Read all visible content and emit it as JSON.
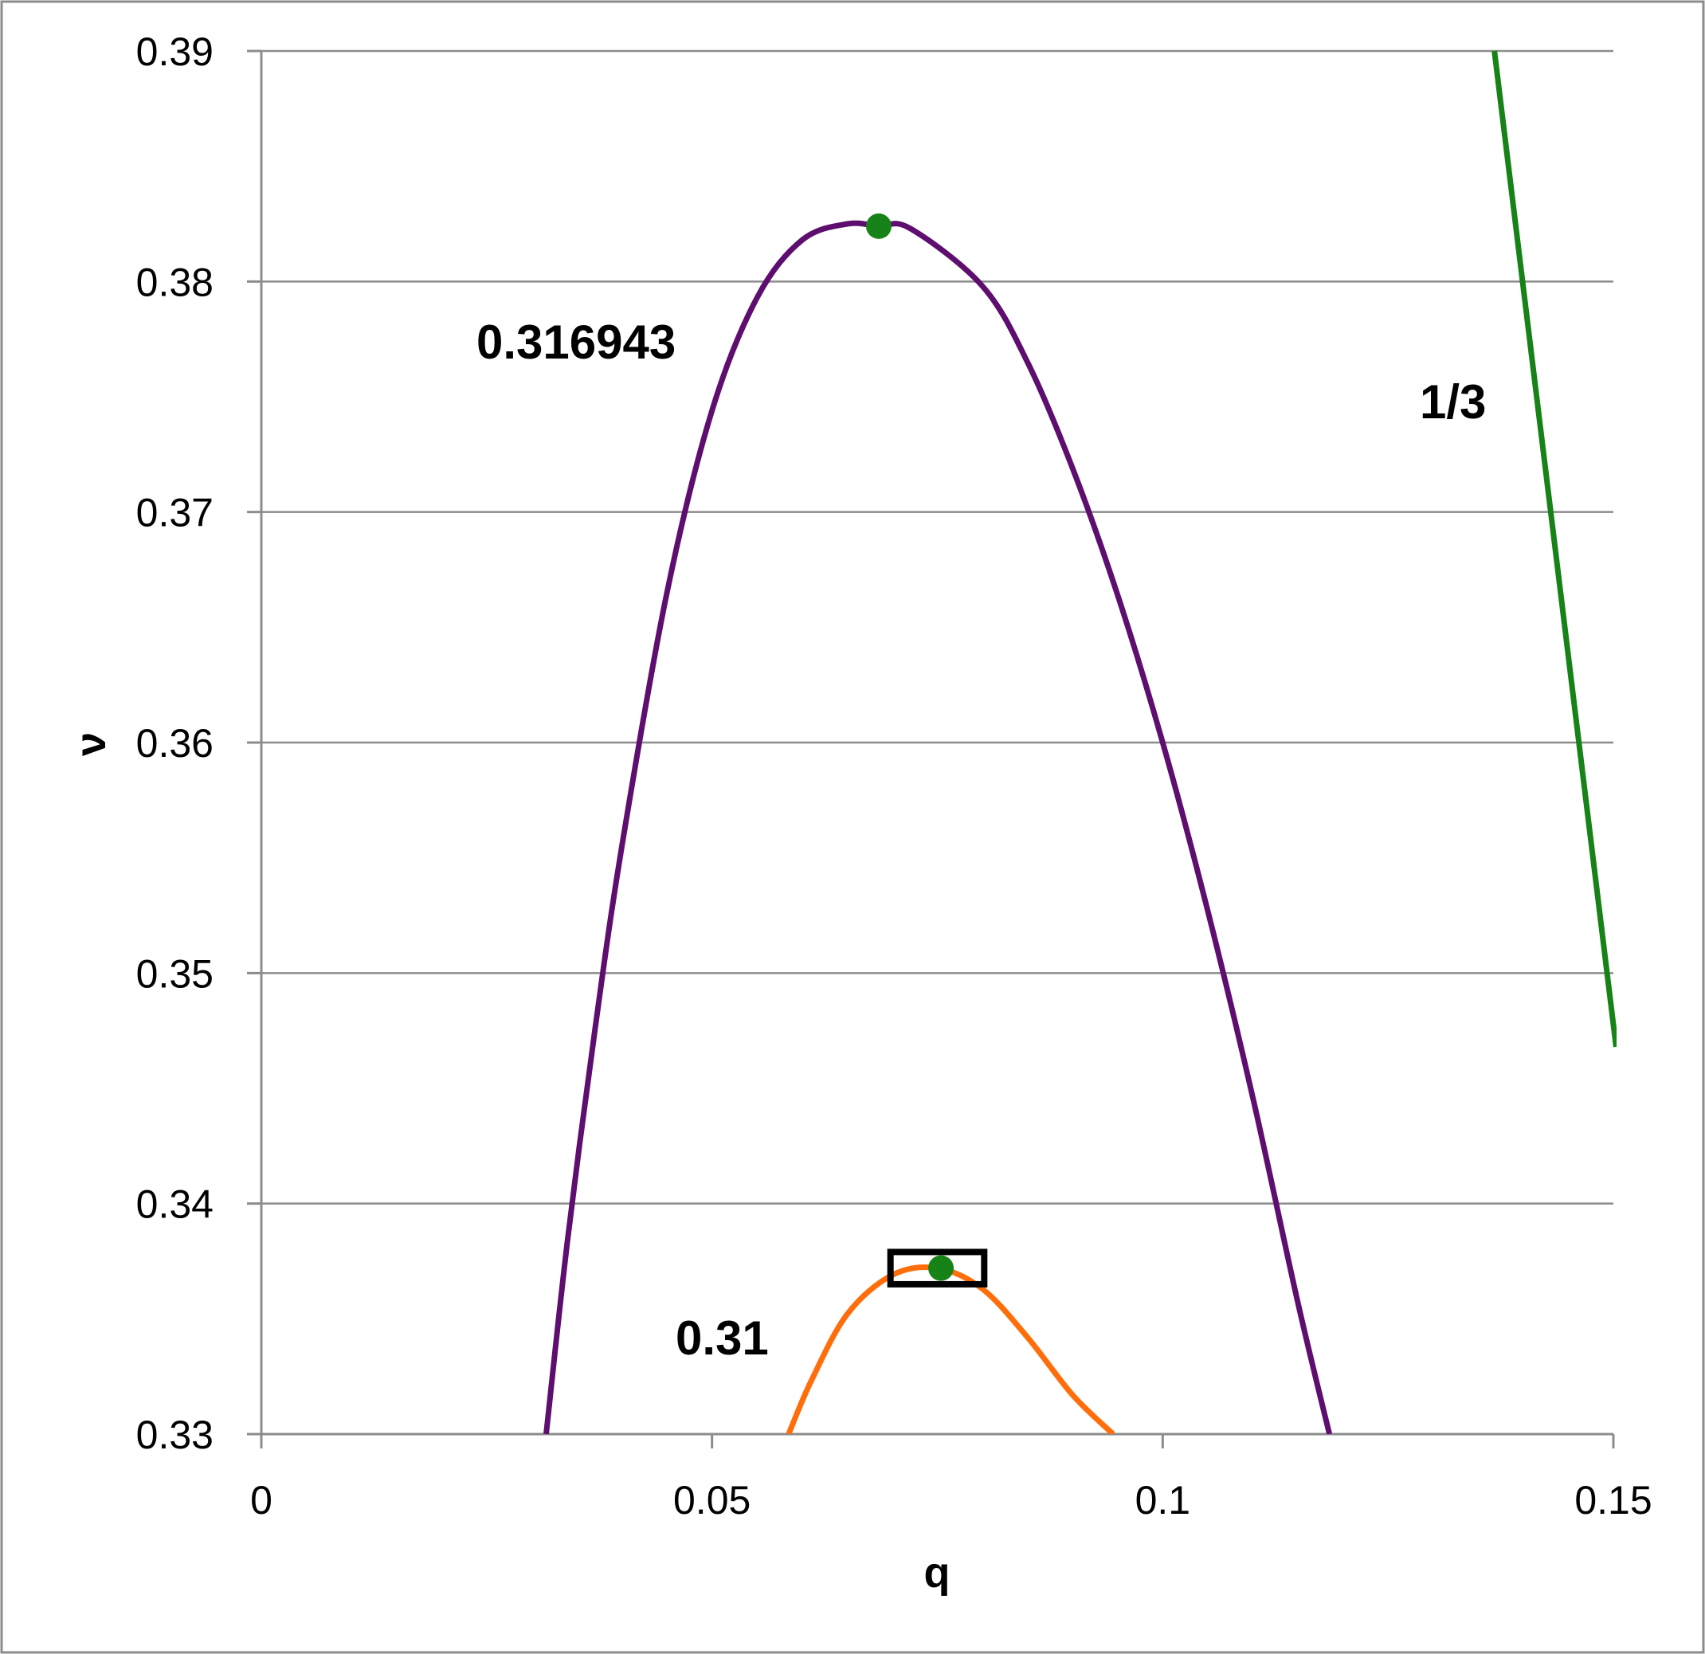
{
  "chart_data": {
    "type": "line",
    "title": "",
    "xlabel": "q",
    "ylabel": "ν",
    "xlim": [
      0,
      0.15
    ],
    "ylim": [
      0.33,
      0.39
    ],
    "x_ticks": [
      0,
      0.05,
      0.1,
      0.15
    ],
    "x_tick_labels": [
      "0",
      "0.05",
      "0.1",
      "0.15"
    ],
    "y_ticks": [
      0.33,
      0.34,
      0.35,
      0.36,
      0.37,
      0.38,
      0.39
    ],
    "y_tick_labels": [
      "0.33",
      "0.34",
      "0.35",
      "0.36",
      "0.37",
      "0.38",
      "0.39"
    ],
    "grid": {
      "horizontal": true,
      "vertical": false
    },
    "legend": "none",
    "series": [
      {
        "name": "0.316943",
        "color": "#5e0e6e",
        "points": [
          [
            0.0316,
            0.33
          ],
          [
            0.034,
            0.3385
          ],
          [
            0.037,
            0.3475
          ],
          [
            0.04,
            0.3555
          ],
          [
            0.045,
            0.3665
          ],
          [
            0.05,
            0.3744
          ],
          [
            0.055,
            0.3793
          ],
          [
            0.06,
            0.3818
          ],
          [
            0.065,
            0.3825
          ],
          [
            0.0685,
            0.3824
          ],
          [
            0.072,
            0.3823
          ],
          [
            0.08,
            0.3798
          ],
          [
            0.085,
            0.3765
          ],
          [
            0.09,
            0.3719
          ],
          [
            0.095,
            0.3664
          ],
          [
            0.1,
            0.36
          ],
          [
            0.105,
            0.3527
          ],
          [
            0.11,
            0.3446
          ],
          [
            0.115,
            0.3357
          ],
          [
            0.1185,
            0.33
          ]
        ],
        "label_position": "left"
      },
      {
        "name": "0.31",
        "color": "#ff6e0a",
        "points": [
          [
            0.0585,
            0.33
          ],
          [
            0.061,
            0.3323
          ],
          [
            0.065,
            0.3352
          ],
          [
            0.07,
            0.3369
          ],
          [
            0.075,
            0.3372
          ],
          [
            0.08,
            0.3363
          ],
          [
            0.085,
            0.3342
          ],
          [
            0.09,
            0.3317
          ],
          [
            0.0945,
            0.33
          ]
        ],
        "label_position": "left"
      },
      {
        "name": "1/3",
        "color": "#178217",
        "points": [
          [
            0.1368,
            0.39
          ],
          [
            0.1503,
            0.3468
          ]
        ],
        "label_position": "left"
      }
    ],
    "markers": [
      {
        "x": 0.0685,
        "y": 0.3824,
        "color": "#178217"
      },
      {
        "x": 0.0754,
        "y": 0.3372,
        "color": "#178217"
      }
    ],
    "highlight_box": {
      "x": [
        0.0698,
        0.0802
      ],
      "y": [
        0.3365,
        0.3379
      ],
      "color": "#000000"
    }
  }
}
